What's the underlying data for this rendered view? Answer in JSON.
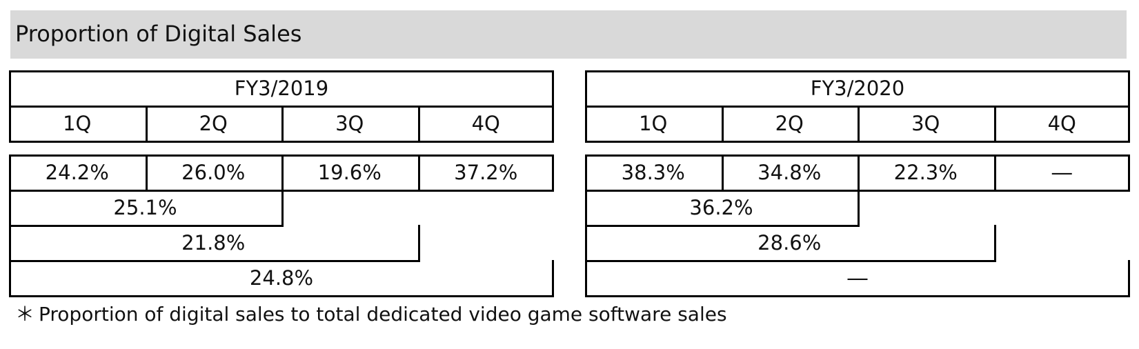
{
  "title": "Proportion of Digital Sales",
  "footnote": {
    "mark": "＊",
    "text": "Proportion of digital sales to total dedicated video game software sales"
  },
  "chart_data": {
    "type": "table",
    "title": "Proportion of Digital Sales",
    "quarters": [
      "1Q",
      "2Q",
      "3Q",
      "4Q"
    ],
    "fiscal_years": [
      {
        "label": "FY3/2019",
        "quarterly": [
          "24.2%",
          "26.0%",
          "19.6%",
          "37.2%"
        ],
        "cumulative": [
          "25.1%",
          "21.8%",
          "24.8%"
        ]
      },
      {
        "label": "FY3/2020",
        "quarterly": [
          "38.3%",
          "34.8%",
          "22.3%",
          "―"
        ],
        "cumulative": [
          "36.2%",
          "28.6%",
          "―"
        ]
      }
    ]
  }
}
